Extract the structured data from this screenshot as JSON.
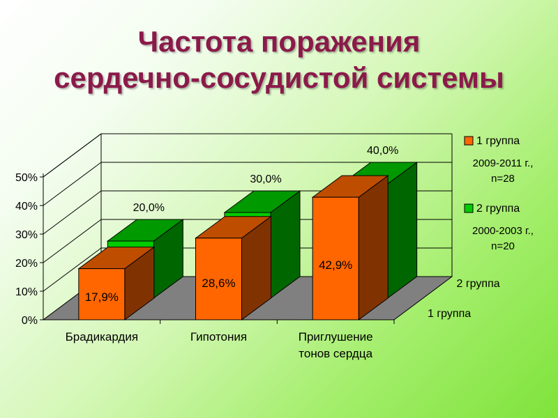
{
  "title": {
    "line1": "Частота поражения",
    "line2": "сердечно-сосудистой системы"
  },
  "chart_data": {
    "type": "bar",
    "categories": [
      "Брадикардия",
      "Гипотония",
      "Приглушение тонов сердца"
    ],
    "series": [
      {
        "name": "1 группа",
        "values": [
          17.9,
          28.6,
          42.9
        ],
        "labels": [
          "17,9%",
          "28,6%",
          "42,9%"
        ],
        "color": "#ff6600",
        "note": [
          "2009-2011 г.,",
          "n=28"
        ]
      },
      {
        "name": "2 группа",
        "values": [
          20.0,
          30.0,
          40.0
        ],
        "labels": [
          "20,0%",
          "30,0%",
          "40,0%"
        ],
        "color": "#00cc00",
        "note": [
          "2000-2003 г.,",
          "n=20"
        ]
      }
    ],
    "yticks": [
      "0%",
      "10%",
      "20%",
      "30%",
      "40%",
      "50%"
    ],
    "ylim": [
      0,
      50
    ],
    "depth_axis": [
      "2 группа",
      "1 группа"
    ],
    "grid": true,
    "legend_position": "right"
  },
  "colors": {
    "title": "#8b1a4a",
    "floor": "#808080"
  }
}
